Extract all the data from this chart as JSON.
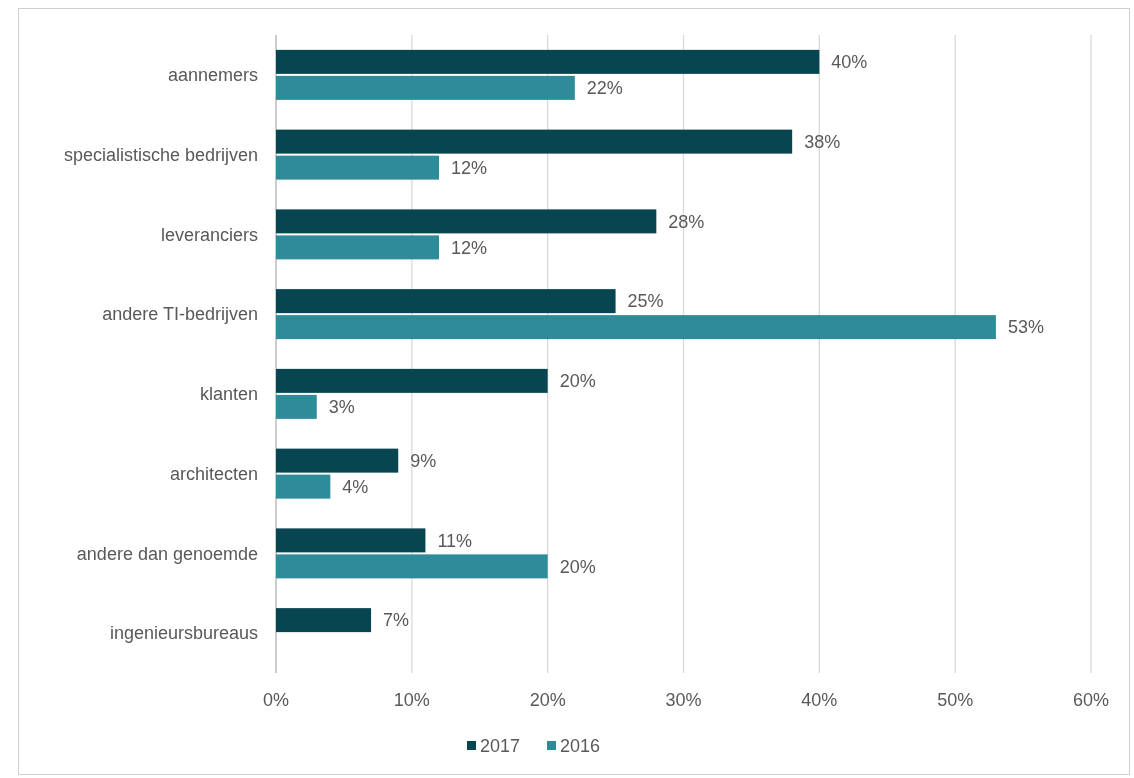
{
  "chart_data": {
    "type": "bar",
    "orientation": "horizontal",
    "categories": [
      "aannemers",
      "specialistische bedrijven",
      "leveranciers",
      "andere TI-bedrijven",
      "klanten",
      "architecten",
      "andere dan genoemde",
      "ingenieursbureaus"
    ],
    "series": [
      {
        "name": "2017",
        "color": "#074650",
        "values": [
          40,
          38,
          28,
          25,
          20,
          9,
          11,
          7
        ],
        "value_labels": [
          "40%",
          "38%",
          "28%",
          "25%",
          "20%",
          "9%",
          "11%",
          "7%"
        ]
      },
      {
        "name": "2016",
        "color": "#2e8b9a",
        "values": [
          22,
          12,
          12,
          53,
          3,
          4,
          20,
          null
        ],
        "value_labels": [
          "22%",
          "12%",
          "12%",
          "53%",
          "3%",
          "4%",
          "20%",
          null
        ]
      }
    ],
    "xlim": [
      0,
      60
    ],
    "xticks": [
      {
        "value": 0,
        "label": "0%"
      },
      {
        "value": 10,
        "label": "10%"
      },
      {
        "value": 20,
        "label": "20%"
      },
      {
        "value": 30,
        "label": "30%"
      },
      {
        "value": 40,
        "label": "40%"
      },
      {
        "value": 50,
        "label": "50%"
      },
      {
        "value": 60,
        "label": "60%"
      }
    ],
    "grid": "x",
    "legend": "bottom"
  }
}
